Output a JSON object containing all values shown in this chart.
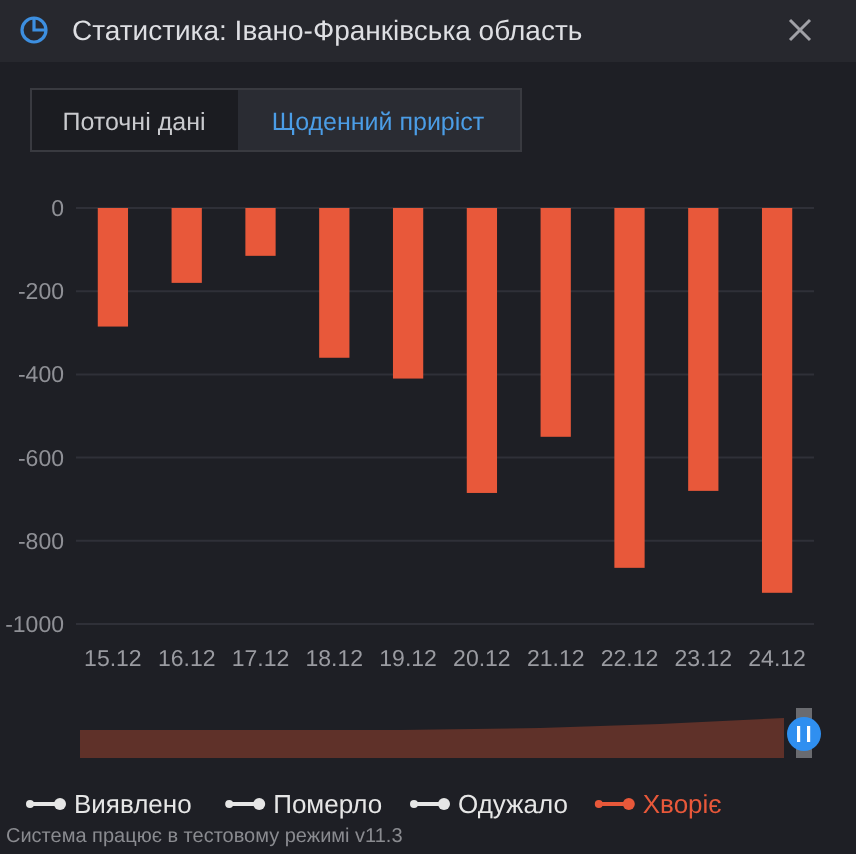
{
  "chart_data": {
    "type": "bar",
    "title": "Статистика: Івано-Франківська область",
    "categories": [
      "15.12",
      "16.12",
      "17.12",
      "18.12",
      "19.12",
      "20.12",
      "21.12",
      "22.12",
      "23.12",
      "24.12"
    ],
    "series": [
      {
        "name": "Виявлено",
        "color": "#e6e6e6",
        "values": [
          null,
          null,
          null,
          null,
          null,
          null,
          null,
          null,
          null,
          null
        ]
      },
      {
        "name": "Померло",
        "color": "#e6e6e6",
        "values": [
          null,
          null,
          null,
          null,
          null,
          null,
          null,
          null,
          null,
          null
        ]
      },
      {
        "name": "Одужало",
        "color": "#e6e6e6",
        "values": [
          null,
          null,
          null,
          null,
          null,
          null,
          null,
          null,
          null,
          null
        ]
      },
      {
        "name": "Хворіє",
        "color": "#e8583a",
        "values": [
          -285,
          -180,
          -115,
          -360,
          -410,
          -685,
          -550,
          -865,
          -680,
          -925
        ]
      }
    ],
    "ylim": [
      -1000,
      0
    ],
    "yticks": [
      0,
      -200,
      -400,
      -600,
      -800,
      -1000
    ],
    "grid": "y",
    "legend": "bottom",
    "annotations": [
      "Поточні дані",
      "Щоденний приріст",
      "Система працює в тестовому режимі v11.3"
    ]
  }
}
